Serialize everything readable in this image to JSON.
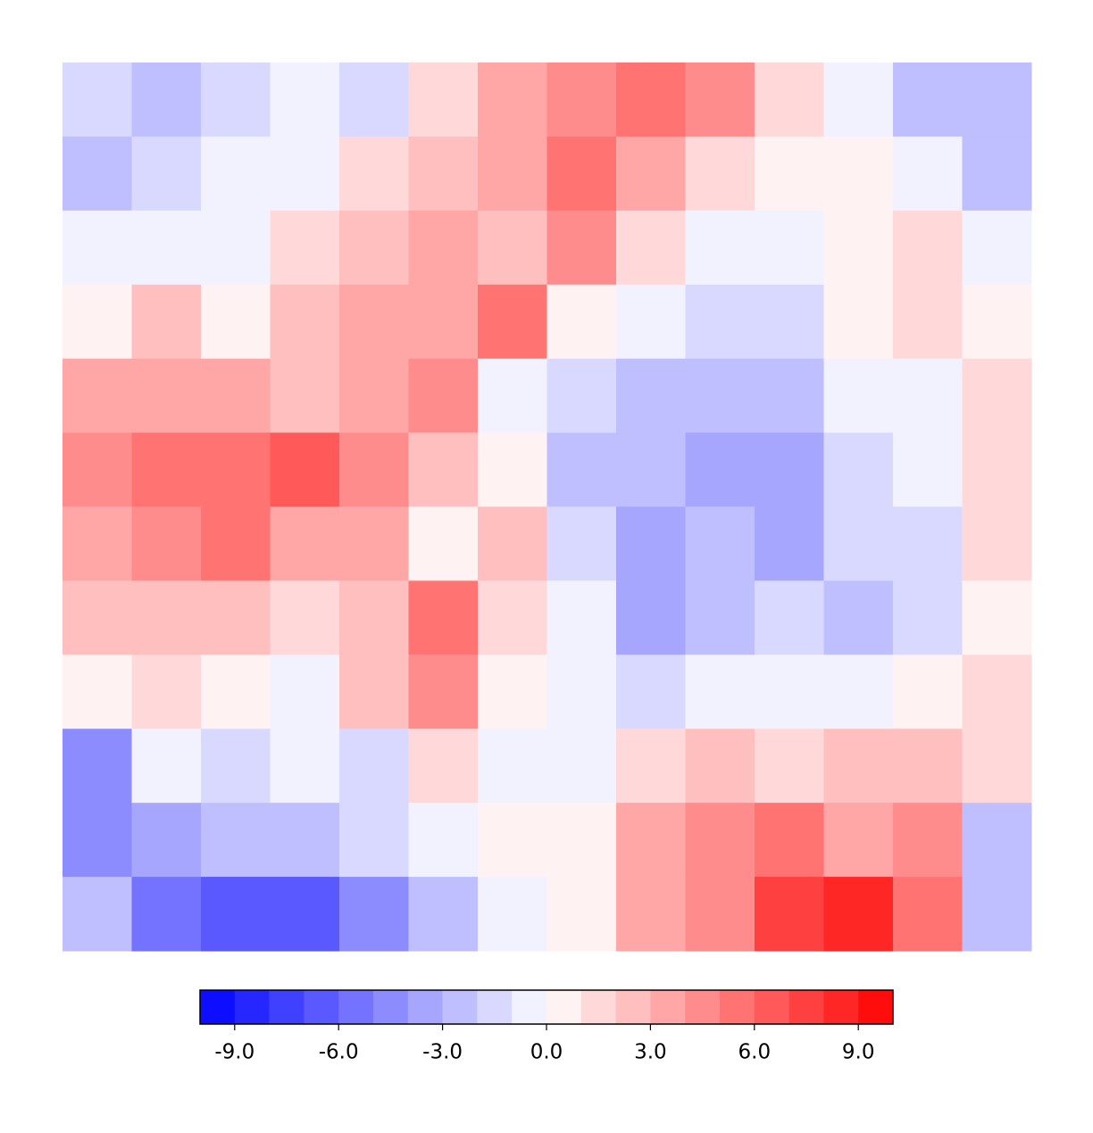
{
  "chart_data": {
    "type": "contourf",
    "cmap": "bwr",
    "levels": [
      -10,
      -9,
      -8,
      -7,
      -6,
      -5,
      -4,
      -3,
      -2,
      -1,
      0,
      1,
      2,
      3,
      4,
      5,
      6,
      7,
      8,
      9,
      10
    ],
    "colorbar_ticks": [
      {
        "value": -9,
        "label": "-9.0"
      },
      {
        "value": -6,
        "label": "-6.0"
      },
      {
        "value": -3,
        "label": "-3.0"
      },
      {
        "value": 0,
        "label": "0.0"
      },
      {
        "value": 3,
        "label": "3.0"
      },
      {
        "value": 6,
        "label": "6.0"
      },
      {
        "value": 9,
        "label": "9.0"
      }
    ],
    "z": [
      [
        -2,
        -3,
        -2,
        -1,
        -2,
        1,
        3,
        4,
        5,
        4,
        1,
        -1,
        -3,
        -3
      ],
      [
        -3,
        -2,
        -1,
        -1,
        1,
        2,
        3,
        5,
        3,
        1,
        0,
        0,
        -1,
        -3
      ],
      [
        -1,
        -1,
        -1,
        1,
        2,
        3,
        2,
        4,
        1,
        -1,
        -1,
        0,
        1,
        -1
      ],
      [
        0,
        2,
        0,
        2,
        3,
        3,
        5,
        0,
        -1,
        -2,
        -2,
        0,
        1,
        0
      ],
      [
        3,
        3,
        3,
        2,
        3,
        4,
        -1,
        -2,
        -3,
        -3,
        -3,
        -1,
        -1,
        1
      ],
      [
        4,
        5,
        5,
        6,
        4,
        2,
        0,
        -3,
        -3,
        -4,
        -4,
        -2,
        -1,
        1
      ],
      [
        3,
        4,
        5,
        3,
        3,
        0,
        2,
        -2,
        -4,
        -3,
        -4,
        -2,
        -2,
        1
      ],
      [
        2,
        2,
        2,
        1,
        2,
        5,
        1,
        -1,
        -4,
        -3,
        -2,
        -3,
        -2,
        0
      ],
      [
        0,
        1,
        0,
        -1,
        2,
        4,
        0,
        -1,
        -2,
        -1,
        -1,
        -1,
        0,
        1
      ],
      [
        -5,
        -1,
        -2,
        -1,
        -2,
        1,
        -1,
        -1,
        1,
        2,
        1,
        2,
        2,
        1
      ],
      [
        -5,
        -4,
        -3,
        -3,
        -2,
        -1,
        0,
        0,
        3,
        4,
        5,
        3,
        4,
        -3
      ],
      [
        -3,
        -6,
        -7,
        -7,
        -5,
        -3,
        -1,
        0,
        3,
        4,
        7,
        8,
        5,
        -3
      ]
    ]
  }
}
